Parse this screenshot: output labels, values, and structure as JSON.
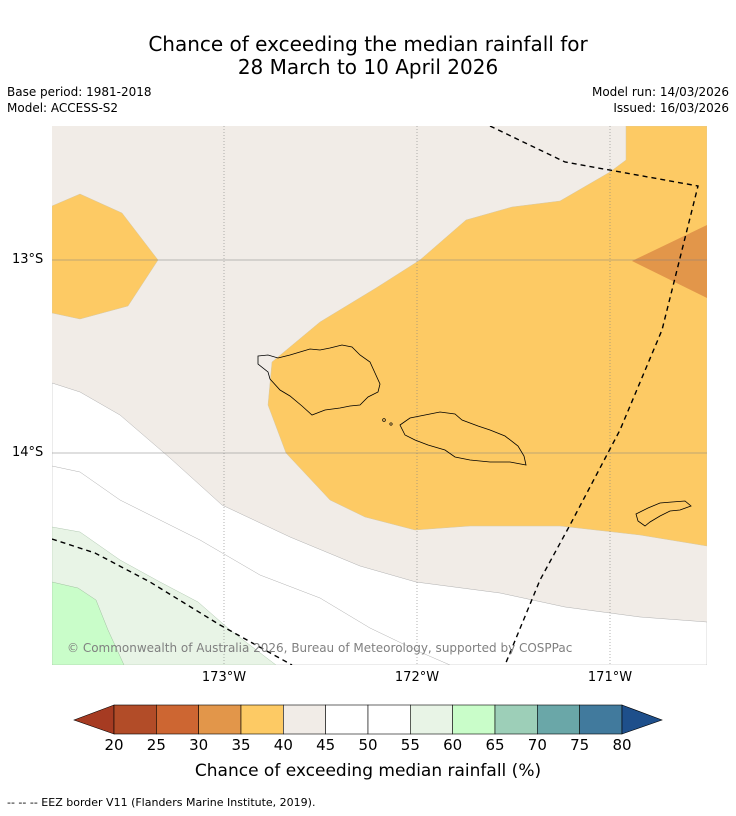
{
  "title": {
    "line1": "Chance of exceeding the median rainfall for",
    "line2": "28 March to 10 April 2026"
  },
  "meta": {
    "base_period": "Base period: 1981-2018",
    "model": "Model: ACCESS-S2",
    "model_run": "Model run: 14/03/2026",
    "issued": "Issued: 16/03/2026"
  },
  "axes": {
    "lat_labels": [
      "13°S",
      "14°S"
    ],
    "lon_labels": [
      "173°W",
      "172°W",
      "171°W"
    ]
  },
  "map": {
    "copyright": "© Commonwealth of Australia 2026, Bureau of Meteorology, supported by COSPPac",
    "colors": {
      "c35_40": "#fdca64",
      "c30_35": "#e2964a",
      "c40_45": "#f1ece7",
      "c45_55": "#ffffff",
      "c55_60": "#e8f4e6",
      "c60_65": "#c9fdc9"
    }
  },
  "colorbar": {
    "ticks": [
      "20",
      "25",
      "30",
      "35",
      "40",
      "45",
      "50",
      "55",
      "60",
      "65",
      "70",
      "75",
      "80"
    ],
    "colors": [
      "#a63b22",
      "#b24c28",
      "#cd6632",
      "#e2964a",
      "#fdca64",
      "#f1ece7",
      "#ffffff",
      "#ffffff",
      "#e8f4e6",
      "#c9fdc9",
      "#9dcfb8",
      "#6aa7a8",
      "#417a9d",
      "#1e4f8b"
    ],
    "label": "Chance of exceeding median rainfall (%)"
  },
  "footer": "--  --  -- EEZ border V11 (Flanders Marine Institute, 2019)."
}
